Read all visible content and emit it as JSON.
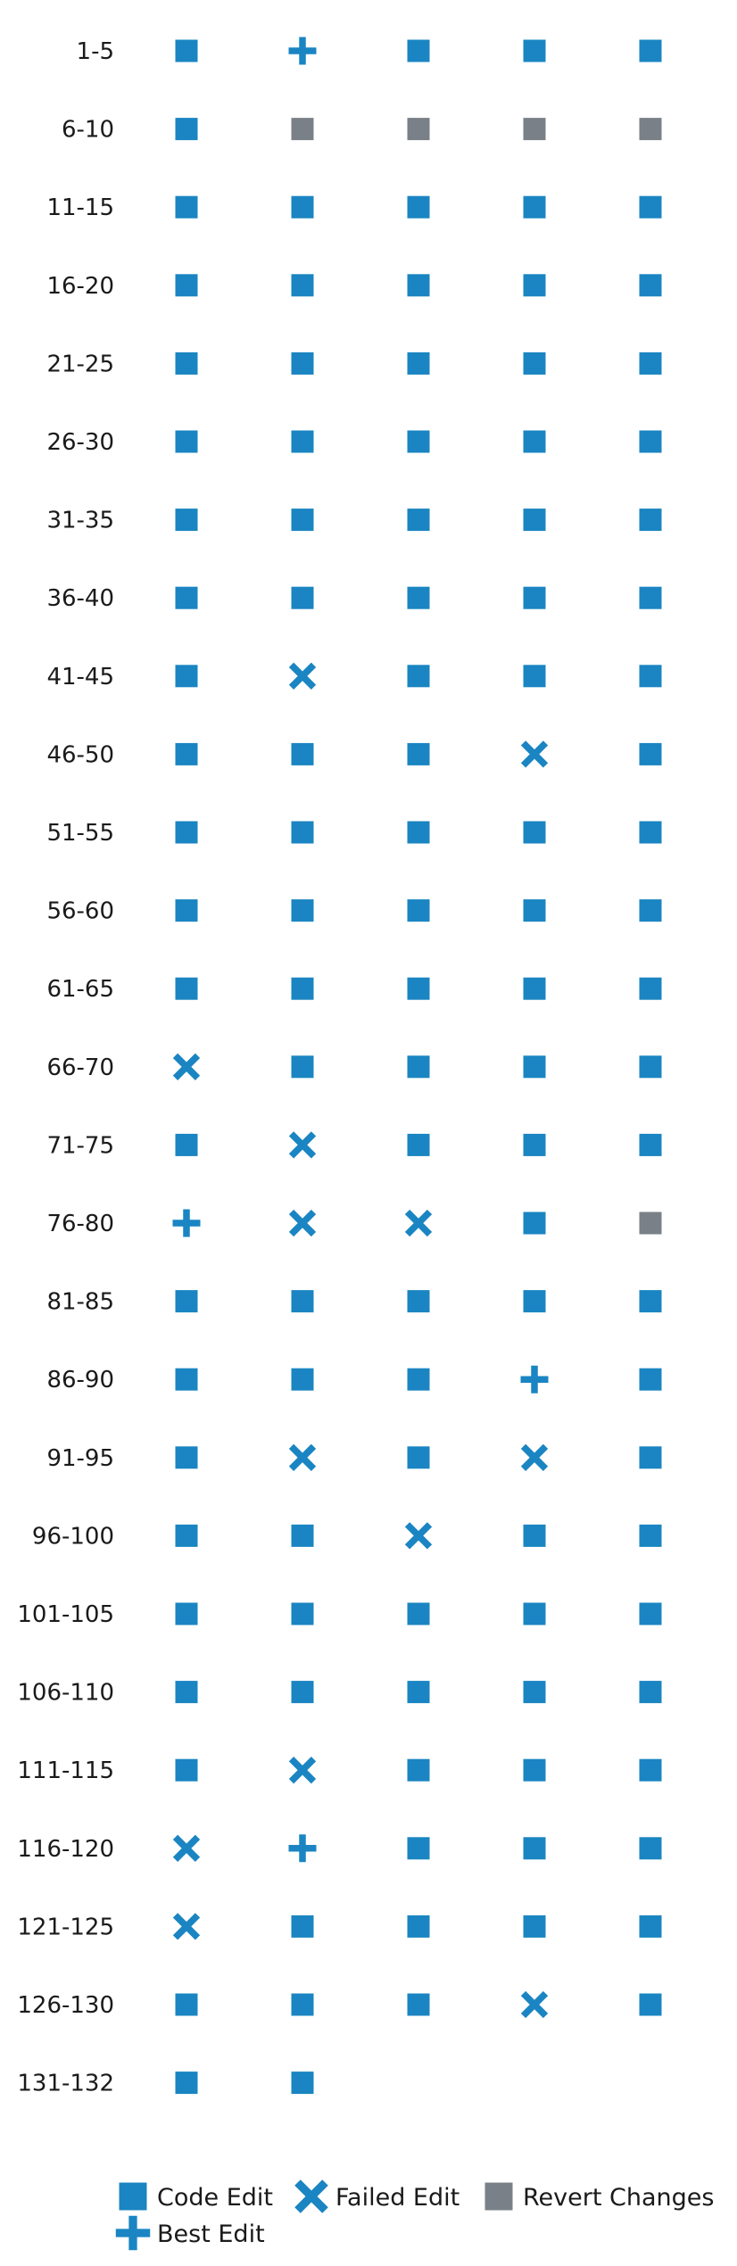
{
  "chart_data": {
    "type": "grid",
    "columns": 5,
    "rows": [
      {
        "label": "1-5",
        "cells": [
          "code",
          "best",
          "code",
          "code",
          "code"
        ]
      },
      {
        "label": "6-10",
        "cells": [
          "code",
          "revert",
          "revert",
          "revert",
          "revert"
        ]
      },
      {
        "label": "11-15",
        "cells": [
          "code",
          "code",
          "code",
          "code",
          "code"
        ]
      },
      {
        "label": "16-20",
        "cells": [
          "code",
          "code",
          "code",
          "code",
          "code"
        ]
      },
      {
        "label": "21-25",
        "cells": [
          "code",
          "code",
          "code",
          "code",
          "code"
        ]
      },
      {
        "label": "26-30",
        "cells": [
          "code",
          "code",
          "code",
          "code",
          "code"
        ]
      },
      {
        "label": "31-35",
        "cells": [
          "code",
          "code",
          "code",
          "code",
          "code"
        ]
      },
      {
        "label": "36-40",
        "cells": [
          "code",
          "code",
          "code",
          "code",
          "code"
        ]
      },
      {
        "label": "41-45",
        "cells": [
          "code",
          "failed",
          "code",
          "code",
          "code"
        ]
      },
      {
        "label": "46-50",
        "cells": [
          "code",
          "code",
          "code",
          "failed",
          "code"
        ]
      },
      {
        "label": "51-55",
        "cells": [
          "code",
          "code",
          "code",
          "code",
          "code"
        ]
      },
      {
        "label": "56-60",
        "cells": [
          "code",
          "code",
          "code",
          "code",
          "code"
        ]
      },
      {
        "label": "61-65",
        "cells": [
          "code",
          "code",
          "code",
          "code",
          "code"
        ]
      },
      {
        "label": "66-70",
        "cells": [
          "failed",
          "code",
          "code",
          "code",
          "code"
        ]
      },
      {
        "label": "71-75",
        "cells": [
          "code",
          "failed",
          "code",
          "code",
          "code"
        ]
      },
      {
        "label": "76-80",
        "cells": [
          "best",
          "failed",
          "failed",
          "code",
          "revert"
        ]
      },
      {
        "label": "81-85",
        "cells": [
          "code",
          "code",
          "code",
          "code",
          "code"
        ]
      },
      {
        "label": "86-90",
        "cells": [
          "code",
          "code",
          "code",
          "best",
          "code"
        ]
      },
      {
        "label": "91-95",
        "cells": [
          "code",
          "failed",
          "code",
          "failed",
          "code"
        ]
      },
      {
        "label": "96-100",
        "cells": [
          "code",
          "code",
          "failed",
          "code",
          "code"
        ]
      },
      {
        "label": "101-105",
        "cells": [
          "code",
          "code",
          "code",
          "code",
          "code"
        ]
      },
      {
        "label": "106-110",
        "cells": [
          "code",
          "code",
          "code",
          "code",
          "code"
        ]
      },
      {
        "label": "111-115",
        "cells": [
          "code",
          "failed",
          "code",
          "code",
          "code"
        ]
      },
      {
        "label": "116-120",
        "cells": [
          "failed",
          "best",
          "code",
          "code",
          "code"
        ]
      },
      {
        "label": "121-125",
        "cells": [
          "failed",
          "code",
          "code",
          "code",
          "code"
        ]
      },
      {
        "label": "126-130",
        "cells": [
          "code",
          "code",
          "code",
          "failed",
          "code"
        ]
      },
      {
        "label": "131-132",
        "cells": [
          "code",
          "code"
        ]
      }
    ],
    "legend": [
      {
        "key": "code",
        "label": "Code Edit",
        "marker": "square",
        "color": "#1a85c2"
      },
      {
        "key": "failed",
        "label": "Failed Edit",
        "marker": "x",
        "color": "#1a85c2"
      },
      {
        "key": "revert",
        "label": "Revert Changes",
        "marker": "square",
        "color": "#7a8087"
      },
      {
        "key": "best",
        "label": "Best Edit",
        "marker": "plus",
        "color": "#1a85c2"
      }
    ],
    "legend_placement": "bottom",
    "colors": {
      "primary": "#1a85c2",
      "revert": "#7a8087",
      "text": "#1a1a1a"
    }
  }
}
